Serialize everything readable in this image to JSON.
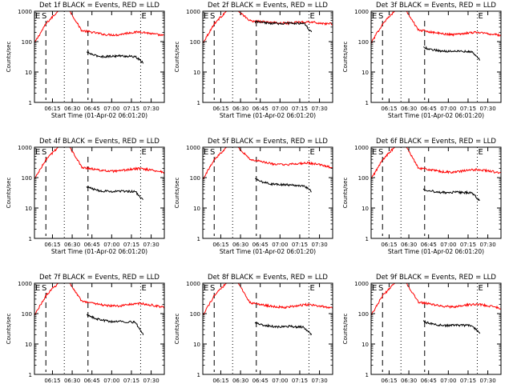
{
  "chart_data": [
    {
      "type": "line",
      "title": "Det 1f BLACK = Events, RED = LLD",
      "xlabel": "Start Time (01-Apr-02 06:01:20)",
      "ylabel": "Counts/sec",
      "yscale": "log",
      "ylim": [
        1,
        1000
      ],
      "xlim": [
        "06:01:20",
        "07:40"
      ],
      "x_ticks": [
        "06:15",
        "06:30",
        "06:45",
        "07:00",
        "07:15",
        "07:30"
      ],
      "y_ticks": [
        "1",
        "10",
        "100",
        "1000"
      ],
      "annotations": [
        "E",
        "S",
        "E"
      ],
      "series": [
        {
          "color": "#ff0000",
          "x_start": "06:01:20",
          "x_end": "07:40",
          "values": [
            90,
            400,
            1000,
            1000,
            230,
            200,
            170,
            165,
            195,
            210,
            180,
            155
          ]
        },
        {
          "color": "#000000",
          "x_start": "06:41",
          "x_end": "07:24",
          "values": [
            45,
            35,
            32,
            33,
            34,
            33,
            32,
            20
          ]
        }
      ],
      "markers": {
        "dashed": [
          "06:10",
          "06:42"
        ],
        "dotted": [
          "06:24",
          "07:22"
        ]
      }
    },
    {
      "type": "line",
      "title": "Det 2f BLACK = Events, RED = LLD",
      "xlabel": "Start Time (01-Apr-02 06:01:20)",
      "ylabel": "Counts/sec",
      "yscale": "log",
      "ylim": [
        1,
        1000
      ],
      "xlim": [
        "06:01:20",
        "07:40"
      ],
      "x_ticks": [
        "06:15",
        "06:30",
        "06:45",
        "07:00",
        "07:15",
        "07:30"
      ],
      "y_ticks": [
        "1",
        "10",
        "100",
        "1000"
      ],
      "annotations": [
        "E",
        "S",
        "E"
      ],
      "series": [
        {
          "color": "#ff0000",
          "x_start": "06:01:20",
          "x_end": "07:40",
          "values": [
            90,
            400,
            1000,
            1000,
            480,
            450,
            420,
            400,
            430,
            450,
            400,
            380
          ]
        },
        {
          "color": "#000000",
          "x_start": "06:41",
          "x_end": "07:24",
          "values": [
            450,
            420,
            400,
            390,
            400,
            400,
            410,
            200
          ]
        }
      ],
      "markers": {
        "dashed": [
          "06:10",
          "06:42"
        ],
        "dotted": [
          "06:24",
          "07:22"
        ]
      }
    },
    {
      "type": "line",
      "title": "Det 3f BLACK = Events, RED = LLD",
      "xlabel": "Start Time (01-Apr-02 06:01:20)",
      "ylabel": "Counts/sec",
      "yscale": "log",
      "ylim": [
        1,
        1000
      ],
      "xlim": [
        "06:01:20",
        "07:40"
      ],
      "x_ticks": [
        "06:15",
        "06:30",
        "06:45",
        "07:00",
        "07:15",
        "07:30"
      ],
      "y_ticks": [
        "1",
        "10",
        "100",
        "1000"
      ],
      "annotations": [
        "E",
        "S",
        "E"
      ],
      "series": [
        {
          "color": "#ff0000",
          "x_start": "06:01:20",
          "x_end": "07:40",
          "values": [
            90,
            400,
            1000,
            1000,
            240,
            210,
            180,
            170,
            190,
            205,
            180,
            160
          ]
        },
        {
          "color": "#000000",
          "x_start": "06:41",
          "x_end": "07:24",
          "values": [
            65,
            55,
            50,
            48,
            50,
            48,
            46,
            25
          ]
        }
      ],
      "markers": {
        "dashed": [
          "06:10",
          "06:42"
        ],
        "dotted": [
          "06:24",
          "07:22"
        ]
      }
    },
    {
      "type": "line",
      "title": "Det 4f BLACK = Events, RED = LLD",
      "xlabel": "Start Time (01-Apr-02 06:01:20)",
      "ylabel": "Counts/sec",
      "yscale": "log",
      "ylim": [
        1,
        1000
      ],
      "xlim": [
        "06:01:20",
        "07:40"
      ],
      "x_ticks": [
        "06:15",
        "06:30",
        "06:45",
        "07:00",
        "07:15",
        "07:30"
      ],
      "y_ticks": [
        "1",
        "10",
        "100",
        "1000"
      ],
      "annotations": [
        "E",
        "S",
        "E"
      ],
      "series": [
        {
          "color": "#ff0000",
          "x_start": "06:01:20",
          "x_end": "07:40",
          "values": [
            90,
            400,
            1000,
            1000,
            220,
            190,
            165,
            160,
            185,
            200,
            175,
            150
          ]
        },
        {
          "color": "#000000",
          "x_start": "06:41",
          "x_end": "07:24",
          "values": [
            50,
            40,
            36,
            35,
            36,
            35,
            35,
            18
          ]
        }
      ],
      "markers": {
        "dashed": [
          "06:10",
          "06:42"
        ],
        "dotted": [
          "06:24",
          "07:22"
        ]
      }
    },
    {
      "type": "line",
      "title": "Det 5f BLACK = Events, RED = LLD",
      "xlabel": "Start Time (01-Apr-02 06:01:20)",
      "ylabel": "Counts/sec",
      "yscale": "log",
      "ylim": [
        1,
        1000
      ],
      "xlim": [
        "06:01:20",
        "07:40"
      ],
      "x_ticks": [
        "06:15",
        "06:30",
        "06:45",
        "07:00",
        "07:15",
        "07:30"
      ],
      "y_ticks": [
        "1",
        "10",
        "100",
        "1000"
      ],
      "annotations": [
        "E",
        "S",
        "E"
      ],
      "series": [
        {
          "color": "#ff0000",
          "x_start": "06:01:20",
          "x_end": "07:40",
          "values": [
            90,
            400,
            1000,
            1000,
            400,
            330,
            280,
            260,
            290,
            300,
            260,
            210
          ]
        },
        {
          "color": "#000000",
          "x_start": "06:41",
          "x_end": "07:24",
          "values": [
            90,
            70,
            62,
            60,
            58,
            56,
            55,
            35
          ]
        }
      ],
      "markers": {
        "dashed": [
          "06:10",
          "06:42"
        ],
        "dotted": [
          "06:24",
          "07:22"
        ]
      }
    },
    {
      "type": "line",
      "title": "Det 6f BLACK = Events, RED = LLD",
      "xlabel": "Start Time (01-Apr-02 06:01:20)",
      "ylabel": "Counts/sec",
      "yscale": "log",
      "ylim": [
        1,
        1000
      ],
      "xlim": [
        "06:01:20",
        "07:40"
      ],
      "x_ticks": [
        "06:15",
        "06:30",
        "06:45",
        "07:00",
        "07:15",
        "07:30"
      ],
      "y_ticks": [
        "1",
        "10",
        "100",
        "1000"
      ],
      "annotations": [
        "E",
        "S",
        "E"
      ],
      "series": [
        {
          "color": "#ff0000",
          "x_start": "06:01:20",
          "x_end": "07:40",
          "values": [
            90,
            400,
            1000,
            1000,
            210,
            180,
            155,
            150,
            170,
            185,
            165,
            140
          ]
        },
        {
          "color": "#000000",
          "x_start": "06:41",
          "x_end": "07:24",
          "values": [
            42,
            36,
            33,
            32,
            33,
            32,
            32,
            17
          ]
        }
      ],
      "markers": {
        "dashed": [
          "06:10",
          "06:42"
        ],
        "dotted": [
          "06:24",
          "07:22"
        ]
      }
    },
    {
      "type": "line",
      "title": "Det 7f BLACK = Events, RED = LLD",
      "xlabel": "Start Time (01-Apr-02 06:01:20)",
      "ylabel": "Counts/sec",
      "yscale": "log",
      "ylim": [
        1,
        1000
      ],
      "xlim": [
        "06:01:20",
        "07:40"
      ],
      "x_ticks": [
        "06:15",
        "06:30",
        "06:45",
        "07:00",
        "07:15",
        "07:30"
      ],
      "y_ticks": [
        "1",
        "10",
        "100",
        "1000"
      ],
      "annotations": [
        "E",
        "S",
        "E"
      ],
      "series": [
        {
          "color": "#ff0000",
          "x_start": "06:01:20",
          "x_end": "07:40",
          "values": [
            90,
            400,
            1000,
            1000,
            260,
            220,
            185,
            175,
            200,
            215,
            190,
            160
          ]
        },
        {
          "color": "#000000",
          "x_start": "06:41",
          "x_end": "07:24",
          "values": [
            90,
            70,
            60,
            55,
            55,
            54,
            52,
            20
          ]
        }
      ],
      "markers": {
        "dashed": [
          "06:10",
          "06:42"
        ],
        "dotted": [
          "06:24",
          "07:22"
        ]
      }
    },
    {
      "type": "line",
      "title": "Det 8f BLACK = Events, RED = LLD",
      "xlabel": "Start Time (01-Apr-02 06:01:20)",
      "ylabel": "Counts/sec",
      "yscale": "log",
      "ylim": [
        1,
        1000
      ],
      "xlim": [
        "06:01:20",
        "07:40"
      ],
      "x_ticks": [
        "06:15",
        "06:30",
        "06:45",
        "07:00",
        "07:15",
        "07:30"
      ],
      "y_ticks": [
        "1",
        "10",
        "100",
        "1000"
      ],
      "annotations": [
        "E",
        "S",
        "E"
      ],
      "series": [
        {
          "color": "#ff0000",
          "x_start": "06:01:20",
          "x_end": "07:40",
          "values": [
            90,
            400,
            1000,
            1000,
            230,
            195,
            170,
            160,
            185,
            200,
            175,
            150
          ]
        },
        {
          "color": "#000000",
          "x_start": "06:41",
          "x_end": "07:24",
          "values": [
            50,
            42,
            38,
            37,
            38,
            37,
            36,
            20
          ]
        }
      ],
      "markers": {
        "dashed": [
          "06:10",
          "06:42"
        ],
        "dotted": [
          "06:24",
          "07:22"
        ]
      }
    },
    {
      "type": "line",
      "title": "Det 9f BLACK = Events, RED = LLD",
      "xlabel": "Start Time (01-Apr-02 06:01:20)",
      "ylabel": "Counts/sec",
      "yscale": "log",
      "ylim": [
        1,
        1000
      ],
      "xlim": [
        "06:01:20",
        "07:40"
      ],
      "x_ticks": [
        "06:15",
        "06:30",
        "06:45",
        "07:00",
        "07:15",
        "07:30"
      ],
      "y_ticks": [
        "1",
        "10",
        "100",
        "1000"
      ],
      "annotations": [
        "E",
        "S",
        "E"
      ],
      "series": [
        {
          "color": "#ff0000",
          "x_start": "06:01:20",
          "x_end": "07:40",
          "values": [
            90,
            400,
            1000,
            1000,
            240,
            205,
            175,
            165,
            190,
            205,
            180,
            150
          ]
        },
        {
          "color": "#000000",
          "x_start": "06:41",
          "x_end": "07:24",
          "values": [
            55,
            46,
            42,
            40,
            42,
            41,
            40,
            22
          ]
        }
      ],
      "markers": {
        "dashed": [
          "06:10",
          "06:42"
        ],
        "dotted": [
          "06:24",
          "07:22"
        ]
      }
    }
  ]
}
